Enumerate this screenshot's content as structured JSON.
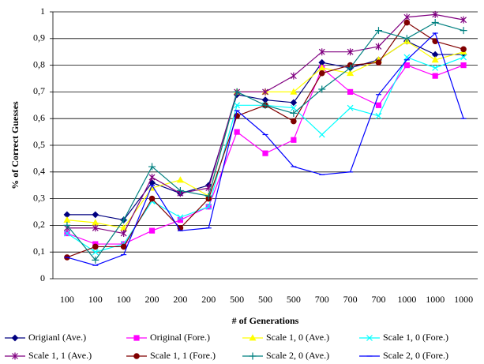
{
  "chart_data": {
    "type": "line",
    "x_label": "# of Generations",
    "y_label": "% of Correct Guesses",
    "categories": [
      "100",
      "100",
      "100",
      "200",
      "200",
      "200",
      "500",
      "500",
      "500",
      "700",
      "700",
      "700",
      "1000",
      "1000",
      "1000"
    ],
    "ylim": [
      0,
      1
    ],
    "yticks": [
      0,
      {
        "value": 0.1,
        "label": "0,1"
      },
      {
        "value": 0.2,
        "label": "0,2"
      },
      {
        "value": 0.3,
        "label": "0,3"
      },
      {
        "value": 0.4,
        "label": "0,4"
      },
      {
        "value": 0.5,
        "label": "0,5"
      },
      {
        "value": 0.6,
        "label": "0,6"
      },
      {
        "value": 0.7,
        "label": "0,7"
      },
      {
        "value": 0.8,
        "label": "0,8"
      },
      {
        "value": 0.9,
        "label": "0,9"
      },
      1
    ],
    "grid": true,
    "legend": "bottom",
    "series": [
      {
        "name": "Origianl (Ave.)",
        "color": "#000080",
        "marker": "diamond",
        "values": [
          0.24,
          0.24,
          0.22,
          0.36,
          0.32,
          0.35,
          0.69,
          0.67,
          0.66,
          0.81,
          0.79,
          0.82,
          0.89,
          0.84,
          0.84
        ]
      },
      {
        "name": "Original (Fore.)",
        "color": "#ff00ff",
        "marker": "square",
        "values": [
          0.17,
          0.13,
          0.13,
          0.18,
          0.22,
          0.27,
          0.55,
          0.47,
          0.52,
          0.79,
          0.7,
          0.65,
          0.8,
          0.76,
          0.8
        ]
      },
      {
        "name": "Scale 1, 0 (Ave.)",
        "color": "#ffff00",
        "marker": "triangle",
        "values": [
          0.22,
          0.21,
          0.19,
          0.34,
          0.37,
          0.31,
          0.7,
          0.7,
          0.7,
          0.79,
          0.77,
          0.82,
          0.89,
          0.82,
          0.85
        ]
      },
      {
        "name": "Scale 1, 0 (Fore.)",
        "color": "#00ffff",
        "marker": "x",
        "values": [
          0.17,
          0.1,
          0.13,
          0.29,
          0.23,
          0.27,
          0.65,
          0.65,
          0.64,
          0.54,
          0.64,
          0.61,
          0.83,
          0.79,
          0.83
        ]
      },
      {
        "name": "Scale 1, 1 (Ave.)",
        "color": "#800080",
        "marker": "asterisk",
        "values": [
          0.19,
          0.19,
          0.17,
          0.38,
          0.32,
          0.34,
          0.7,
          0.7,
          0.76,
          0.85,
          0.85,
          0.87,
          0.98,
          0.99,
          0.97
        ]
      },
      {
        "name": "Scale 1, 1 (Fore.)",
        "color": "#800000",
        "marker": "circle",
        "values": [
          0.08,
          0.12,
          0.12,
          0.3,
          0.19,
          0.3,
          0.61,
          0.65,
          0.59,
          0.77,
          0.8,
          0.81,
          0.96,
          0.89,
          0.86
        ]
      },
      {
        "name": "Scale 2, 0 (Ave.)",
        "color": "#008080",
        "marker": "plus",
        "values": [
          0.2,
          0.07,
          0.22,
          0.42,
          0.33,
          0.31,
          0.7,
          0.65,
          0.62,
          0.71,
          0.79,
          0.93,
          0.9,
          0.96,
          0.93
        ]
      },
      {
        "name": "Scale 2, 0 (Fore.)",
        "color": "#0000ff",
        "marker": "dash",
        "values": [
          0.08,
          0.05,
          0.09,
          0.35,
          0.18,
          0.19,
          0.63,
          0.54,
          0.42,
          0.39,
          0.4,
          0.69,
          0.82,
          0.92,
          0.6
        ]
      }
    ]
  }
}
